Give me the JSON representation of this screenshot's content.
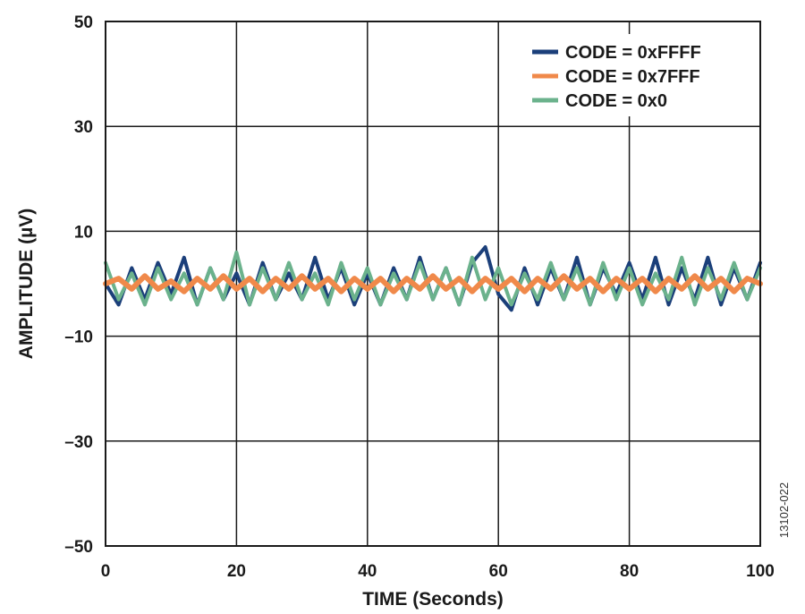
{
  "figure_id": "13102-022",
  "chart_data": {
    "type": "line",
    "xlabel": "TIME (Seconds)",
    "ylabel": "AMPLITUDE (µV)",
    "xlim": [
      0,
      100
    ],
    "ylim": [
      -50,
      50
    ],
    "x_ticks": [
      0,
      20,
      40,
      60,
      80,
      100
    ],
    "x_tick_labels": [
      "0",
      "20",
      "40",
      "60",
      "80",
      "100"
    ],
    "y_ticks": [
      50,
      30,
      10,
      -10,
      -30,
      -50
    ],
    "y_tick_labels": [
      "50",
      "30",
      "10",
      "–10",
      "–30",
      "–50"
    ],
    "grid": true,
    "legend_position": "top-right",
    "series": [
      {
        "name": "CODE = 0xFFFF",
        "color": "#1b3f7a",
        "x": [
          0,
          2,
          4,
          6,
          8,
          10,
          12,
          14,
          16,
          18,
          20,
          22,
          24,
          26,
          28,
          30,
          32,
          34,
          36,
          38,
          40,
          42,
          44,
          46,
          48,
          50,
          52,
          54,
          56,
          58,
          60,
          62,
          64,
          66,
          68,
          70,
          72,
          74,
          76,
          78,
          80,
          82,
          84,
          86,
          88,
          90,
          92,
          94,
          96,
          98,
          100
        ],
        "values": [
          0,
          -4,
          3,
          -3,
          4,
          -2,
          5,
          -4,
          3,
          -3,
          2,
          -4,
          4,
          -3,
          2,
          -3,
          5,
          -3,
          3,
          -4,
          2,
          -4,
          3,
          -3,
          5,
          -3,
          3,
          -4,
          4,
          7,
          -2,
          -5,
          3,
          -4,
          3,
          -3,
          5,
          -4,
          3,
          -2,
          4,
          -3,
          5,
          -4,
          3,
          -3,
          5,
          -4,
          3,
          -3,
          4
        ]
      },
      {
        "name": "CODE = 0x7FFF",
        "color": "#f0894a",
        "x": [
          0,
          2,
          4,
          6,
          8,
          10,
          12,
          14,
          16,
          18,
          20,
          22,
          24,
          26,
          28,
          30,
          32,
          34,
          36,
          38,
          40,
          42,
          44,
          46,
          48,
          50,
          52,
          54,
          56,
          58,
          60,
          62,
          64,
          66,
          68,
          70,
          72,
          74,
          76,
          78,
          80,
          82,
          84,
          86,
          88,
          90,
          92,
          94,
          96,
          98,
          100
        ],
        "values": [
          0,
          1,
          -1,
          1.5,
          -1,
          0.5,
          -1.5,
          1,
          -1,
          1.5,
          -1,
          1,
          -1.5,
          1,
          -1,
          1.5,
          -1,
          1,
          -1.5,
          1,
          -1,
          1,
          -1.5,
          1,
          -1,
          1.5,
          -1,
          1,
          -1.5,
          1,
          -1,
          1,
          -1.5,
          1,
          -1,
          1.5,
          -1,
          1,
          -1.5,
          1,
          -1,
          1,
          -1.5,
          1,
          -1,
          1.5,
          -1,
          1,
          -1.5,
          1,
          0
        ]
      },
      {
        "name": "CODE = 0x0",
        "color": "#6bb28c",
        "x": [
          0,
          2,
          4,
          6,
          8,
          10,
          12,
          14,
          16,
          18,
          20,
          22,
          24,
          26,
          28,
          30,
          32,
          34,
          36,
          38,
          40,
          42,
          44,
          46,
          48,
          50,
          52,
          54,
          56,
          58,
          60,
          62,
          64,
          66,
          68,
          70,
          72,
          74,
          76,
          78,
          80,
          82,
          84,
          86,
          88,
          90,
          92,
          94,
          96,
          98,
          100
        ],
        "values": [
          4,
          -3,
          2,
          -4,
          3,
          -3,
          2,
          -4,
          3,
          -3,
          6,
          -4,
          3,
          -3,
          4,
          -3,
          2,
          -4,
          4,
          -3,
          3,
          -4,
          2,
          -3,
          4,
          -3,
          3,
          -4,
          5,
          -3,
          3,
          -4,
          2,
          -3,
          4,
          -3,
          3,
          -4,
          4,
          -3,
          3,
          -4,
          2,
          -3,
          5,
          -4,
          3,
          -3,
          4,
          -3,
          3
        ]
      }
    ]
  }
}
